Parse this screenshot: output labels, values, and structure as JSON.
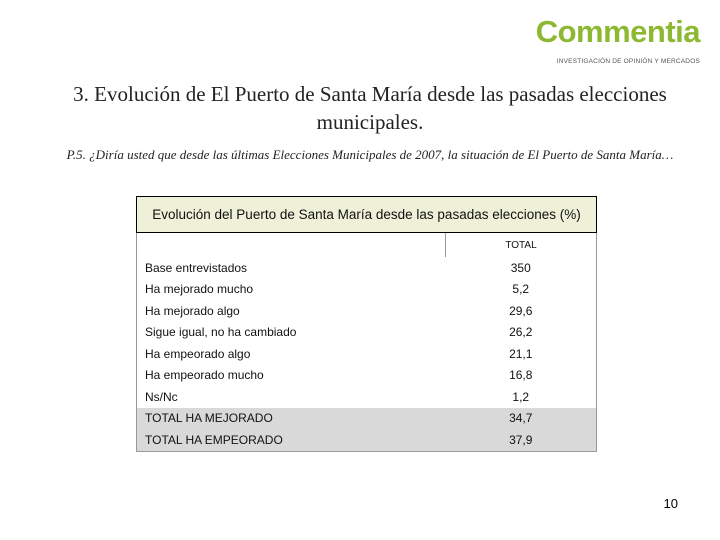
{
  "header": {
    "logo": "Commentia",
    "tagline": "INVESTIGACIÓN DE OPINIÓN Y MERCADOS"
  },
  "title": "3. Evolución de El Puerto de Santa María desde las pasadas elecciones municipales.",
  "question": "P.5. ¿Diría usted que desde las últimas Elecciones Municipales de 2007, la situación de El Puerto de Santa María…",
  "table": {
    "caption": "Evolución del Puerto de Santa María desde las pasadas elecciones (%)",
    "column": "TOTAL",
    "rows": [
      [
        "Base entrevistados",
        "350"
      ],
      [
        "Ha mejorado mucho",
        "5,2"
      ],
      [
        "Ha mejorado algo",
        "29,6"
      ],
      [
        "Sigue igual, no ha cambiado",
        "26,2"
      ],
      [
        "Ha empeorado algo",
        "21,1"
      ],
      [
        "Ha empeorado mucho",
        "16,8"
      ],
      [
        "Ns/Nc",
        "1,2"
      ],
      [
        "TOTAL HA MEJORADO",
        "34,7"
      ],
      [
        "TOTAL HA EMPEORADO",
        "37,9"
      ]
    ]
  },
  "page_number": "10"
}
